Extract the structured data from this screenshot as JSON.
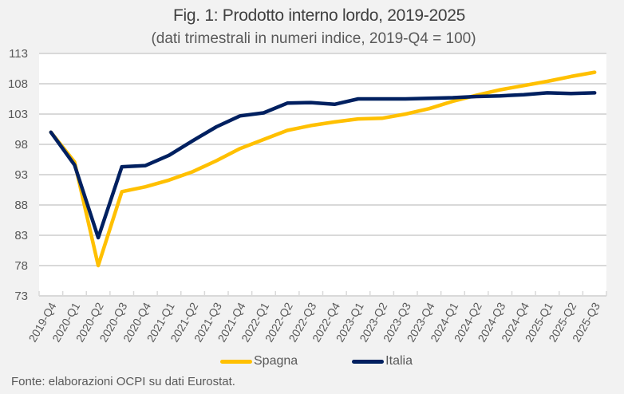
{
  "title": "Fig. 1: Prodotto interno lordo, 2019-2025",
  "subtitle": "(dati trimestrali in numeri indice, 2019-Q4 = 100)",
  "source": "Fonte: elaborazioni OCPI su dati Eurostat.",
  "colors": {
    "spagna": "#FFC000",
    "italia": "#002060",
    "background": "#F2F2F2",
    "plot_background": "#FFFFFF",
    "gridline": "#D9D9D9"
  },
  "legend": [
    {
      "name": "Spagna",
      "color": "#FFC000"
    },
    {
      "name": "Italia",
      "color": "#002060"
    }
  ],
  "chart_data": {
    "type": "line",
    "title": "Fig. 1: Prodotto interno lordo, 2019-2025",
    "subtitle": "(dati trimestrali in numeri indice, 2019-Q4 = 100)",
    "xlabel": "",
    "ylabel": "",
    "ylim": [
      73,
      113
    ],
    "yticks": [
      73,
      78,
      83,
      88,
      93,
      98,
      103,
      108,
      113
    ],
    "grid": true,
    "legend_position": "bottom",
    "categories": [
      "2019-Q4",
      "2020-Q1",
      "2020-Q2",
      "2020-Q3",
      "2020-Q4",
      "2021-Q1",
      "2021-Q2",
      "2021-Q3",
      "2021-Q4",
      "2022-Q1",
      "2022-Q2",
      "2022-Q3",
      "2022-Q4",
      "2023-Q1",
      "2023-Q2",
      "2023-Q3",
      "2023-Q4",
      "2024-Q1",
      "2024-Q2",
      "2024-Q3",
      "2024-Q4",
      "2025-Q1",
      "2025-Q2",
      "2025-Q3"
    ],
    "series": [
      {
        "name": "Spagna",
        "color": "#FFC000",
        "values": [
          100,
          95.1,
          78.0,
          90.2,
          91.0,
          92.1,
          93.5,
          95.3,
          97.3,
          98.8,
          100.3,
          101.1,
          101.7,
          102.2,
          102.3,
          103.0,
          103.9,
          105.1,
          106.1,
          107.0,
          107.7,
          108.4,
          109.2,
          109.9
        ]
      },
      {
        "name": "Italia",
        "color": "#002060",
        "values": [
          100,
          94.6,
          82.6,
          94.3,
          94.5,
          96.2,
          98.6,
          100.9,
          102.7,
          103.2,
          104.8,
          104.9,
          104.6,
          105.5,
          105.5,
          105.5,
          105.6,
          105.7,
          105.9,
          106.0,
          106.2,
          106.5,
          106.4,
          106.5
        ]
      }
    ]
  }
}
